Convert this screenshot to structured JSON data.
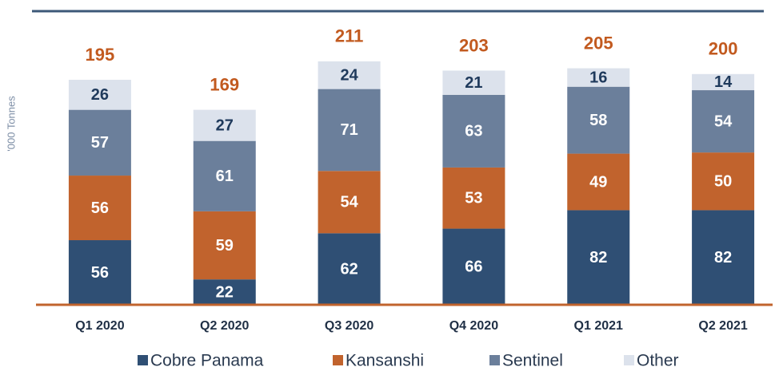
{
  "chart_data": {
    "type": "stacked_bar",
    "ylabel": "'000 Tonnes",
    "categories": [
      "Q1 2020",
      "Q2 2020",
      "Q3 2020",
      "Q4 2020",
      "Q1 2021",
      "Q2 2021"
    ],
    "series": [
      {
        "name": "Cobre Panama",
        "color": "#2f4f74",
        "label_color": "#ffffff",
        "values": [
          56,
          22,
          62,
          66,
          82,
          82
        ]
      },
      {
        "name": "Kansanshi",
        "color": "#c1632d",
        "label_color": "#ffffff",
        "values": [
          56,
          59,
          54,
          53,
          49,
          50
        ]
      },
      {
        "name": "Sentinel",
        "color": "#6b7f9b",
        "label_color": "#ffffff",
        "values": [
          57,
          61,
          71,
          63,
          58,
          54
        ]
      },
      {
        "name": "Other",
        "color": "#dce2ec",
        "label_color": "#1f3a5c",
        "values": [
          26,
          27,
          24,
          21,
          16,
          14
        ]
      }
    ],
    "totals": [
      195,
      169,
      211,
      203,
      205,
      200
    ],
    "totals_color": "#c25a1f",
    "ylim": [
      0,
      250
    ]
  }
}
